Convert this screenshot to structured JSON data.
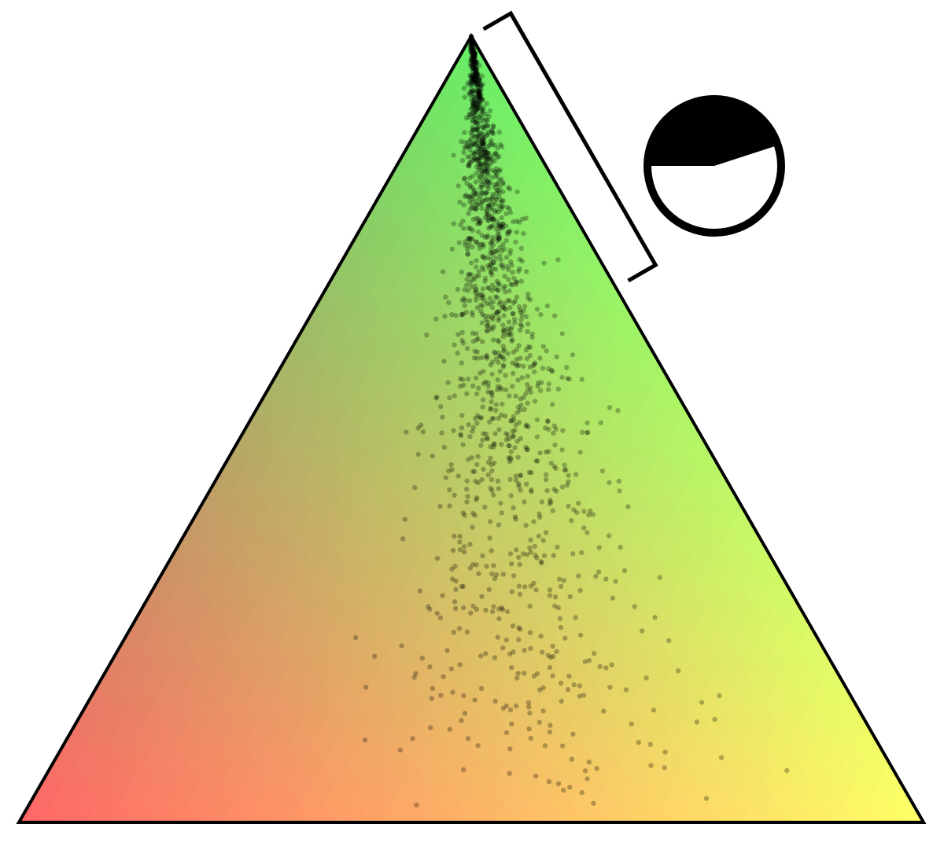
{
  "chart_data": {
    "type": "scatter",
    "coordinate_system": "ternary",
    "vertex_colors": {
      "top": "#66ee66",
      "bottom_left": "#ff6666",
      "bottom_right": "#ffff66"
    },
    "point_color": "#000000",
    "point_opacity": 0.28,
    "grid": false,
    "legend": "none",
    "bracket_span": [
      0.68,
      1.0
    ],
    "pie_inset": {
      "fill_color": "#000000",
      "filled_fraction": 0.45
    },
    "point_distribution": {
      "count": 1500,
      "axis_a": {
        "min": 0.0,
        "max": 1.0,
        "skew_toward_top": 0.55
      },
      "b_over_bc_center": 0.58,
      "b_over_bc_spread": 0.085
    }
  }
}
